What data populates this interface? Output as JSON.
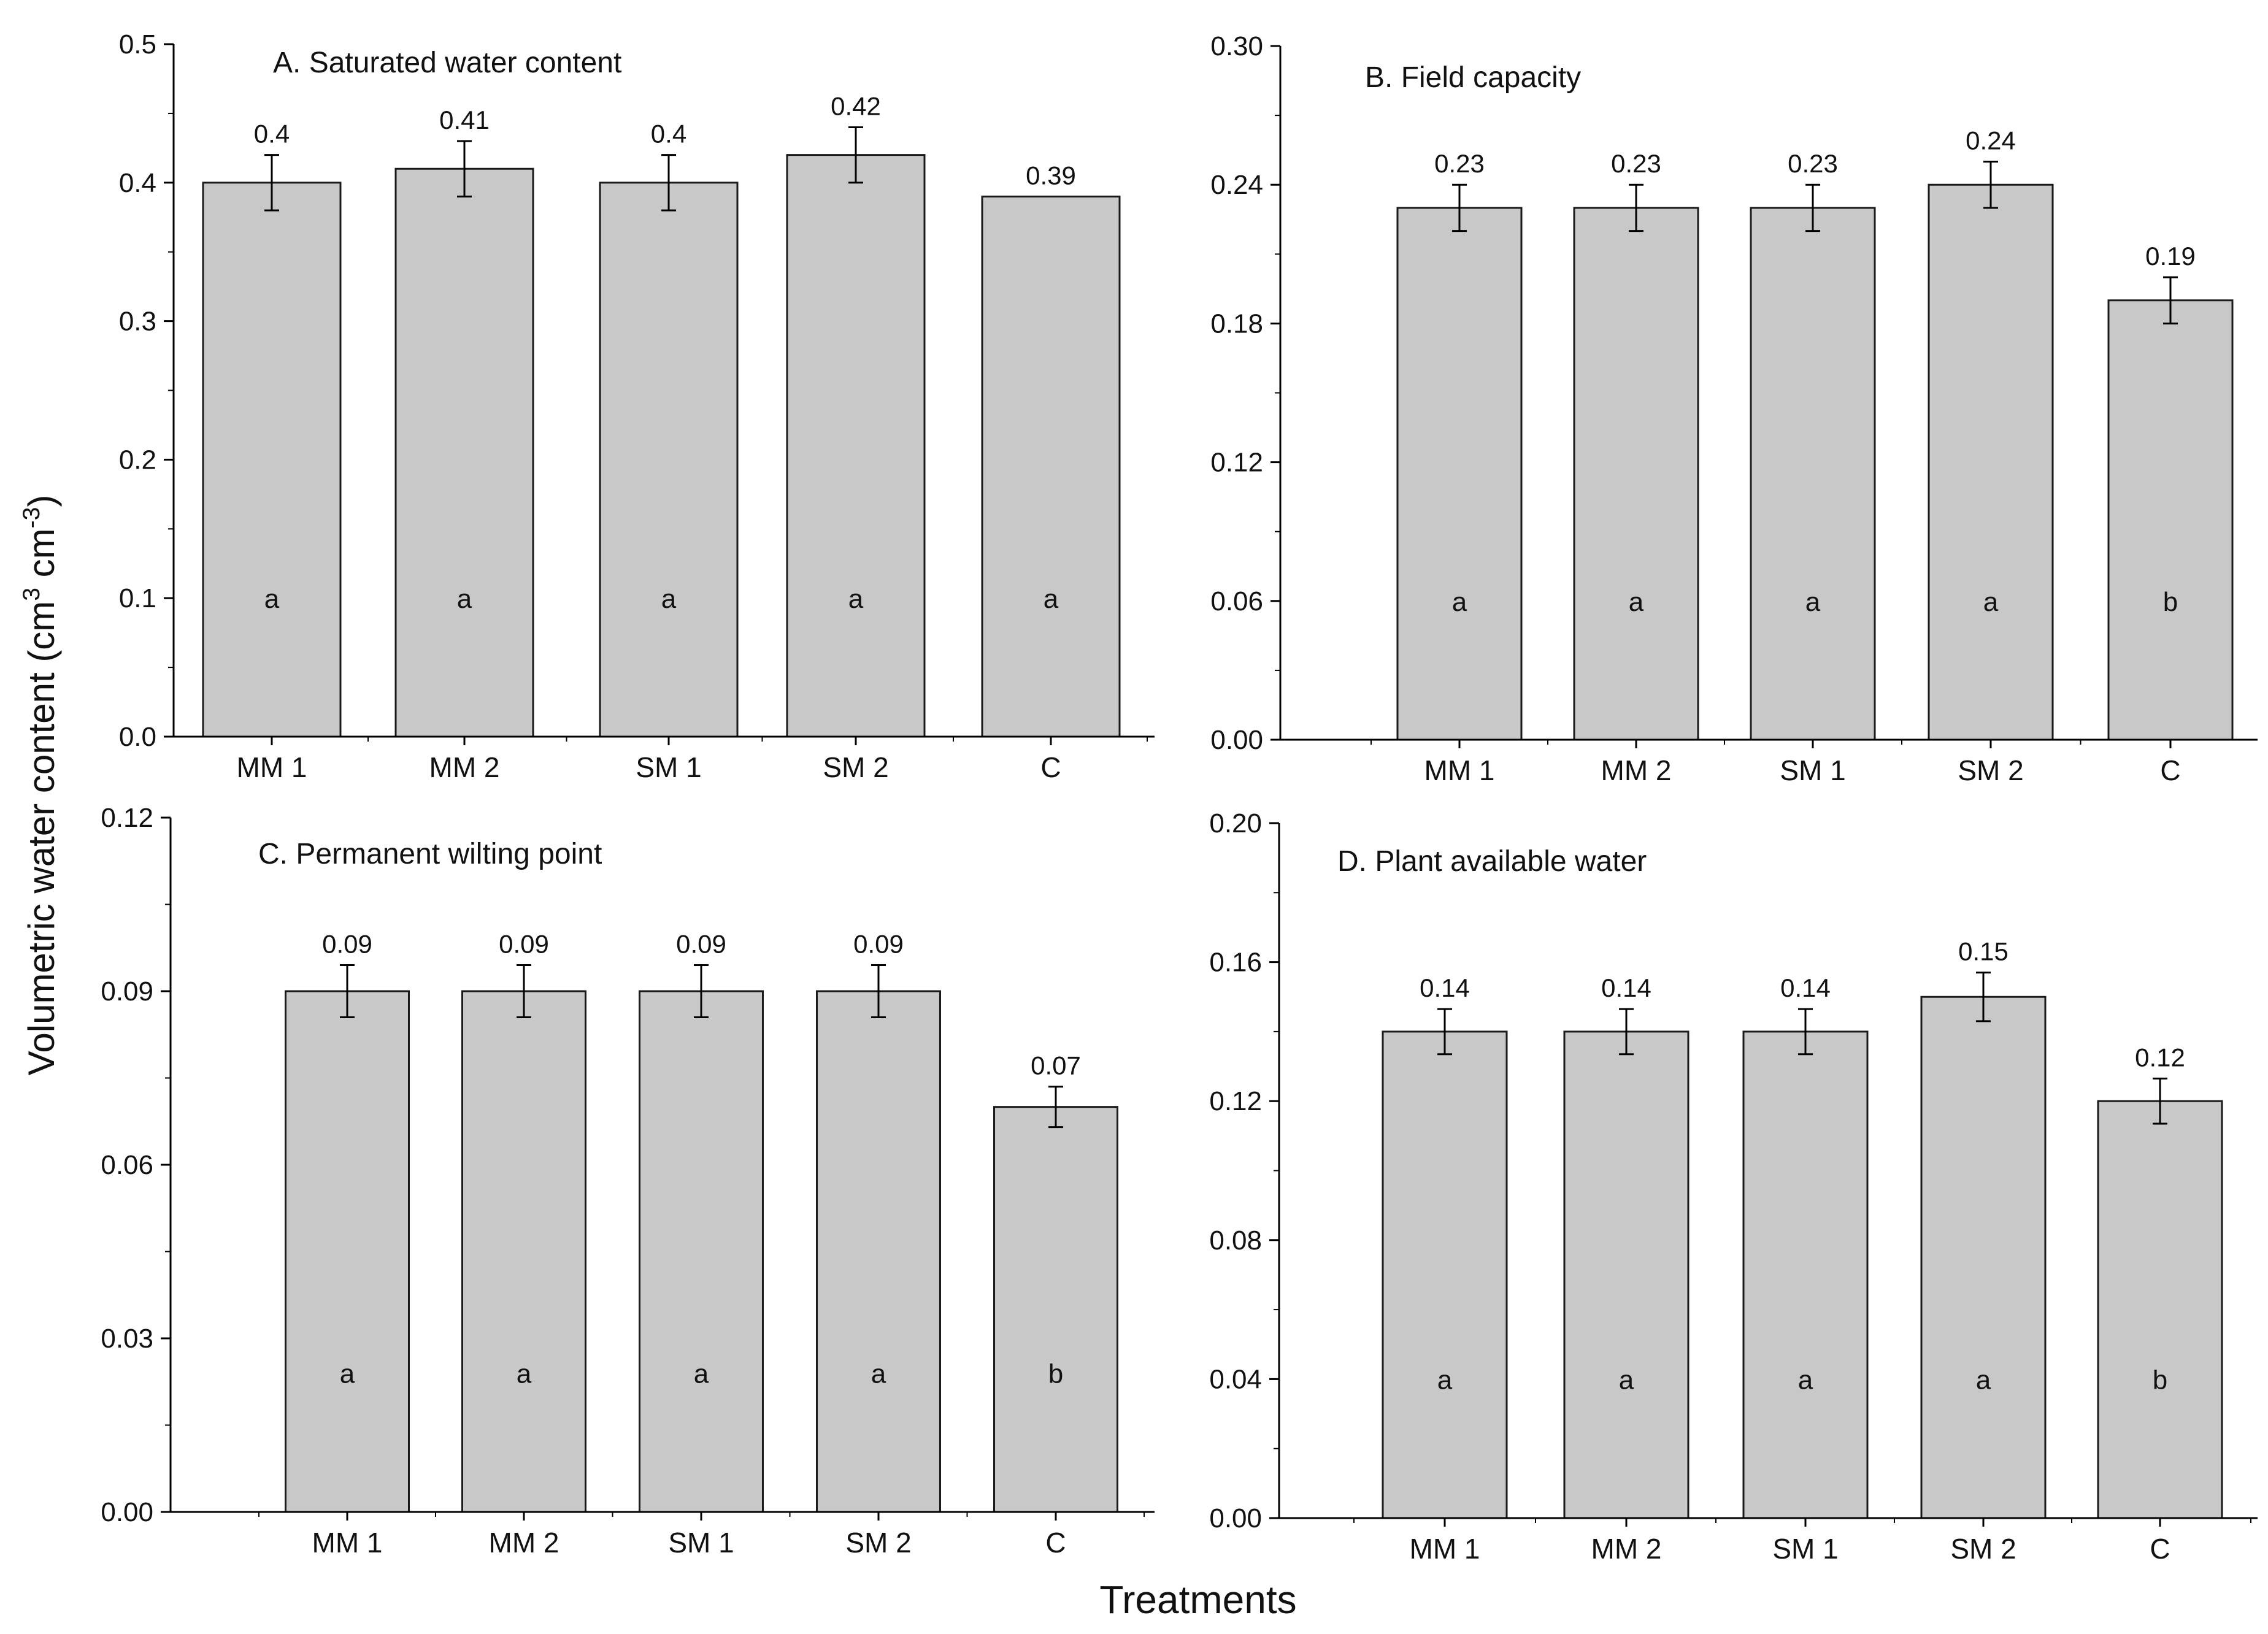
{
  "figure": {
    "ylabel": "Volumetric water content (cm",
    "ylabel_sup1": "3",
    "ylabel_mid": " cm",
    "ylabel_sup2": "-3",
    "ylabel_end": ")",
    "xlabel": "Treatments"
  },
  "colors": {
    "bar": "#c8c8c8",
    "axis": "#000000",
    "text": "#111111"
  },
  "chart_data": [
    {
      "type": "bar",
      "title": "A. Saturated water content",
      "categories": [
        "MM 1",
        "MM 2",
        "SM 1",
        "SM 2",
        "C"
      ],
      "values": [
        0.4,
        0.41,
        0.4,
        0.42,
        0.39
      ],
      "value_labels": [
        "0.4",
        "0.41",
        "0.4",
        "0.42",
        "0.39"
      ],
      "errors": [
        0.02,
        0.02,
        0.02,
        0.02,
        0.0
      ],
      "letters": [
        "a",
        "a",
        "a",
        "a",
        "a"
      ],
      "ylim": [
        0,
        0.5
      ],
      "yticks": [
        "0.0",
        "0.1",
        "0.2",
        "0.3",
        "0.4",
        "0.5"
      ],
      "xlabel": "",
      "ylabel": "Volumetric water content"
    },
    {
      "type": "bar",
      "title": "B. Field capacity",
      "categories": [
        "MM 1",
        "MM 2",
        "SM 1",
        "SM 2",
        "C"
      ],
      "values": [
        0.23,
        0.23,
        0.23,
        0.24,
        0.19
      ],
      "value_labels": [
        "0.23",
        "0.23",
        "0.23",
        "0.24",
        "0.19"
      ],
      "errors": [
        0.01,
        0.01,
        0.01,
        0.01,
        0.01
      ],
      "letters": [
        "a",
        "a",
        "a",
        "a",
        "b"
      ],
      "ylim": [
        0,
        0.3
      ],
      "yticks": [
        "0.00",
        "0.06",
        "0.12",
        "0.18",
        "0.24",
        "0.30"
      ],
      "xlabel": "",
      "ylabel": "Volumetric water content"
    },
    {
      "type": "bar",
      "title": "C. Permanent wilting point",
      "categories": [
        "MM 1",
        "MM 2",
        "SM 1",
        "SM 2",
        "C"
      ],
      "values": [
        0.09,
        0.09,
        0.09,
        0.09,
        0.07
      ],
      "value_labels": [
        "0.09",
        "0.09",
        "0.09",
        "0.09",
        "0.07"
      ],
      "errors": [
        0.0045,
        0.0045,
        0.0045,
        0.0045,
        0.0035
      ],
      "letters": [
        "a",
        "a",
        "a",
        "a",
        "b"
      ],
      "ylim": [
        0,
        0.12
      ],
      "yticks": [
        "0.00",
        "0.03",
        "0.06",
        "0.09",
        "0.12"
      ],
      "xlabel": "Treatments",
      "ylabel": "Volumetric water content"
    },
    {
      "type": "bar",
      "title": "D. Plant available water",
      "categories": [
        "MM 1",
        "MM 2",
        "SM 1",
        "SM 2",
        "C"
      ],
      "values": [
        0.14,
        0.14,
        0.14,
        0.15,
        0.12
      ],
      "value_labels": [
        "0.14",
        "0.14",
        "0.14",
        "0.15",
        "0.12"
      ],
      "errors": [
        0.0065,
        0.0065,
        0.0065,
        0.007,
        0.0065
      ],
      "letters": [
        "a",
        "a",
        "a",
        "a",
        "b"
      ],
      "ylim": [
        0,
        0.2
      ],
      "yticks": [
        "0.00",
        "0.04",
        "0.08",
        "0.12",
        "0.16",
        "0.20"
      ],
      "xlabel": "Treatments",
      "ylabel": "Volumetric water content"
    }
  ]
}
